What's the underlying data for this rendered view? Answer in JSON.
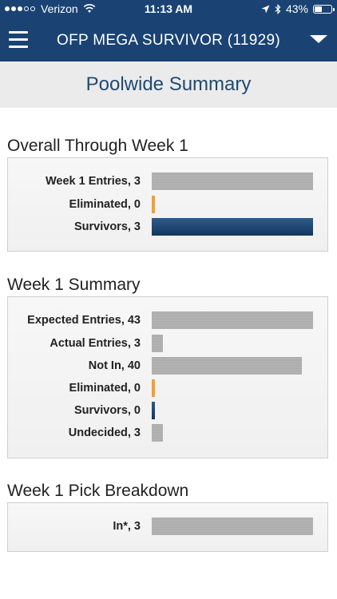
{
  "status_bar": {
    "carrier": "Verizon",
    "time": "11:13 AM",
    "battery": "43%",
    "battery_level": 0.43,
    "signal_bars": 3
  },
  "nav": {
    "title": "OFP MEGA SURVIVOR  (11929)"
  },
  "header": {
    "title": "Poolwide Summary"
  },
  "colors": {
    "nav_bg": "#1a4373",
    "title_blue": "#1f4a73",
    "bar_gray": "#b0b0b0",
    "bar_orange": "#f0a033",
    "bar_navy": "#1a4373"
  },
  "sections": [
    {
      "title": "Overall Through Week 1",
      "max": 3,
      "rows": [
        {
          "label": "Week 1 Entries, 3",
          "value": 3,
          "color": "gray"
        },
        {
          "label": "Eliminated, 0",
          "value": 0,
          "color": "orange"
        },
        {
          "label": "Survivors, 3",
          "value": 3,
          "color": "navy"
        }
      ]
    },
    {
      "title": "Week 1 Summary",
      "max": 43,
      "rows": [
        {
          "label": "Expected Entries, 43",
          "value": 43,
          "color": "gray"
        },
        {
          "label": "Actual Entries, 3",
          "value": 3,
          "color": "gray"
        },
        {
          "label": "Not In, 40",
          "value": 40,
          "color": "gray"
        },
        {
          "label": "Eliminated, 0",
          "value": 0,
          "color": "orange"
        },
        {
          "label": "Survivors, 0",
          "value": 0,
          "color": "navy"
        },
        {
          "label": "Undecided, 3",
          "value": 3,
          "color": "gray"
        }
      ]
    },
    {
      "title": "Week 1 Pick Breakdown",
      "max": 3,
      "rows": [
        {
          "label": "In*, 3",
          "value": 3,
          "color": "gray"
        }
      ]
    }
  ]
}
